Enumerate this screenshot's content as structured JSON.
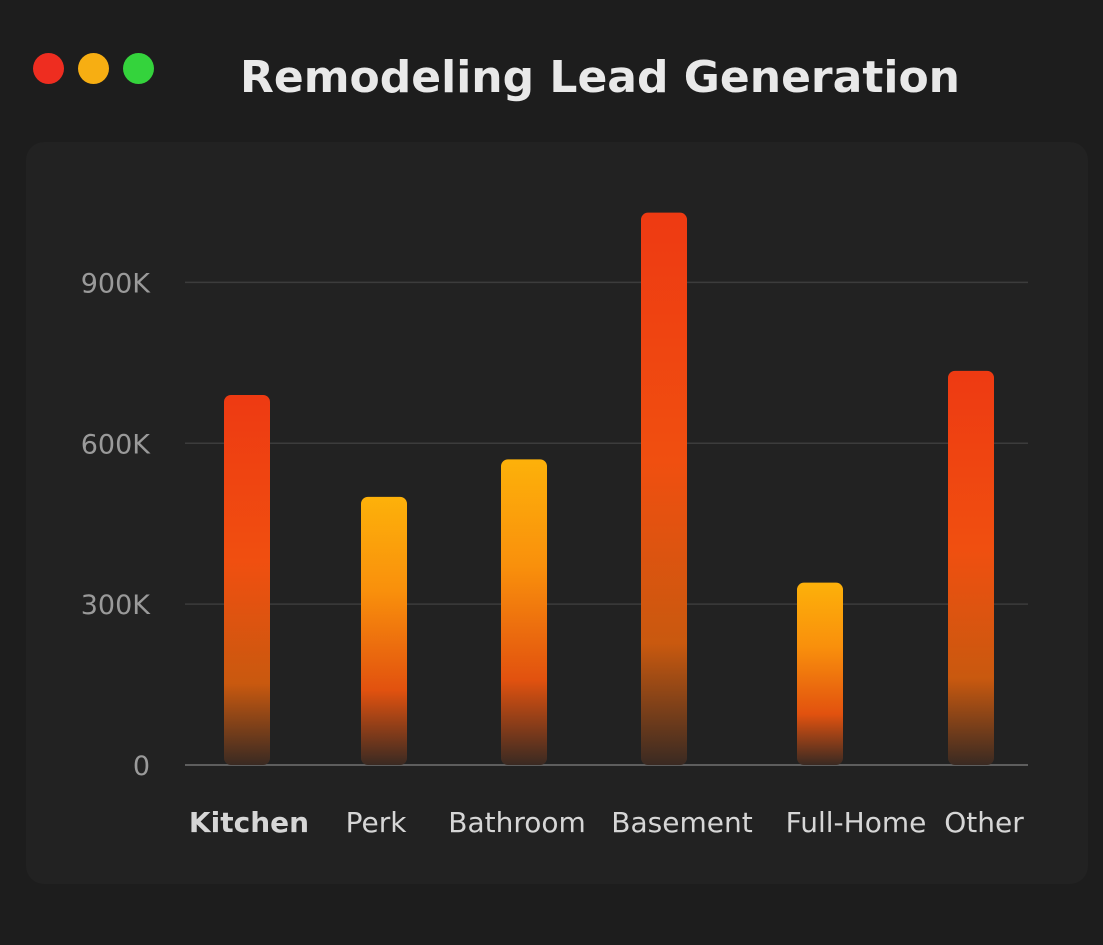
{
  "window": {
    "title": "Remodeling Lead Generation",
    "controls": [
      {
        "name": "close",
        "color": "#ee2d20"
      },
      {
        "name": "minimize",
        "color": "#f7ae12"
      },
      {
        "name": "maximize",
        "color": "#34d33c"
      }
    ]
  },
  "chart_data": {
    "type": "bar",
    "title": "Remodeling Lead Generation",
    "xlabel": "",
    "ylabel": "",
    "categories": [
      "Kitchen",
      "Perk",
      "Bathroom",
      "Basement",
      "Full-Home",
      "Other"
    ],
    "values": [
      690000,
      500000,
      570000,
      1030000,
      340000,
      735000
    ],
    "ylim": [
      0,
      1035000
    ],
    "yticks": [
      0,
      300000,
      600000,
      900000
    ],
    "ytick_labels": [
      "0",
      "300K",
      "600K",
      "900K"
    ],
    "grid": true,
    "legend": "none",
    "bar_top_colors": [
      "#ee3a12",
      "#fdb10a",
      "#fdb10a",
      "#ee3a12",
      "#fdb10a",
      "#ee3a12"
    ],
    "colors": {
      "red": "#ee3a12",
      "orange": "#f27a0e",
      "yellow": "#fdb10a",
      "fade": "#3a2a22"
    }
  }
}
